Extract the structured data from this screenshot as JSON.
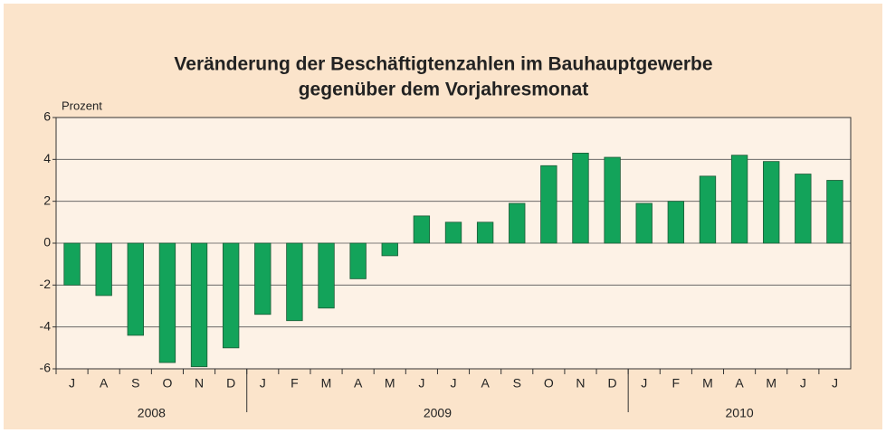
{
  "chart_data": {
    "type": "bar",
    "title": [
      "Veränderung der Beschäftigtenzahlen im Bauhauptgewerbe",
      "gegenüber dem Vorjahresmonat"
    ],
    "y_label": "Prozent",
    "groups": [
      {
        "name": "2008",
        "categories": [
          "J",
          "A",
          "S",
          "O",
          "N",
          "D"
        ],
        "values": [
          -2.0,
          -2.5,
          -4.4,
          -5.7,
          -5.9,
          -5.0
        ]
      },
      {
        "name": "2009",
        "categories": [
          "J",
          "F",
          "M",
          "A",
          "M",
          "J",
          "J",
          "A",
          "S",
          "O",
          "N",
          "D"
        ],
        "values": [
          -3.4,
          -3.7,
          -3.1,
          -1.7,
          -0.6,
          1.3,
          1.0,
          1.0,
          1.9,
          3.7,
          4.3,
          4.1
        ]
      },
      {
        "name": "2010",
        "categories": [
          "J",
          "F",
          "M",
          "A",
          "M",
          "J",
          "J"
        ],
        "values": [
          1.9,
          2.0,
          3.2,
          4.2,
          3.9,
          3.3,
          3.0
        ]
      }
    ],
    "color": "#13a35a",
    "ylim": [
      -6,
      6
    ],
    "yticks": [
      -6,
      -4,
      -2,
      0,
      2,
      4,
      6
    ],
    "grid": true
  }
}
